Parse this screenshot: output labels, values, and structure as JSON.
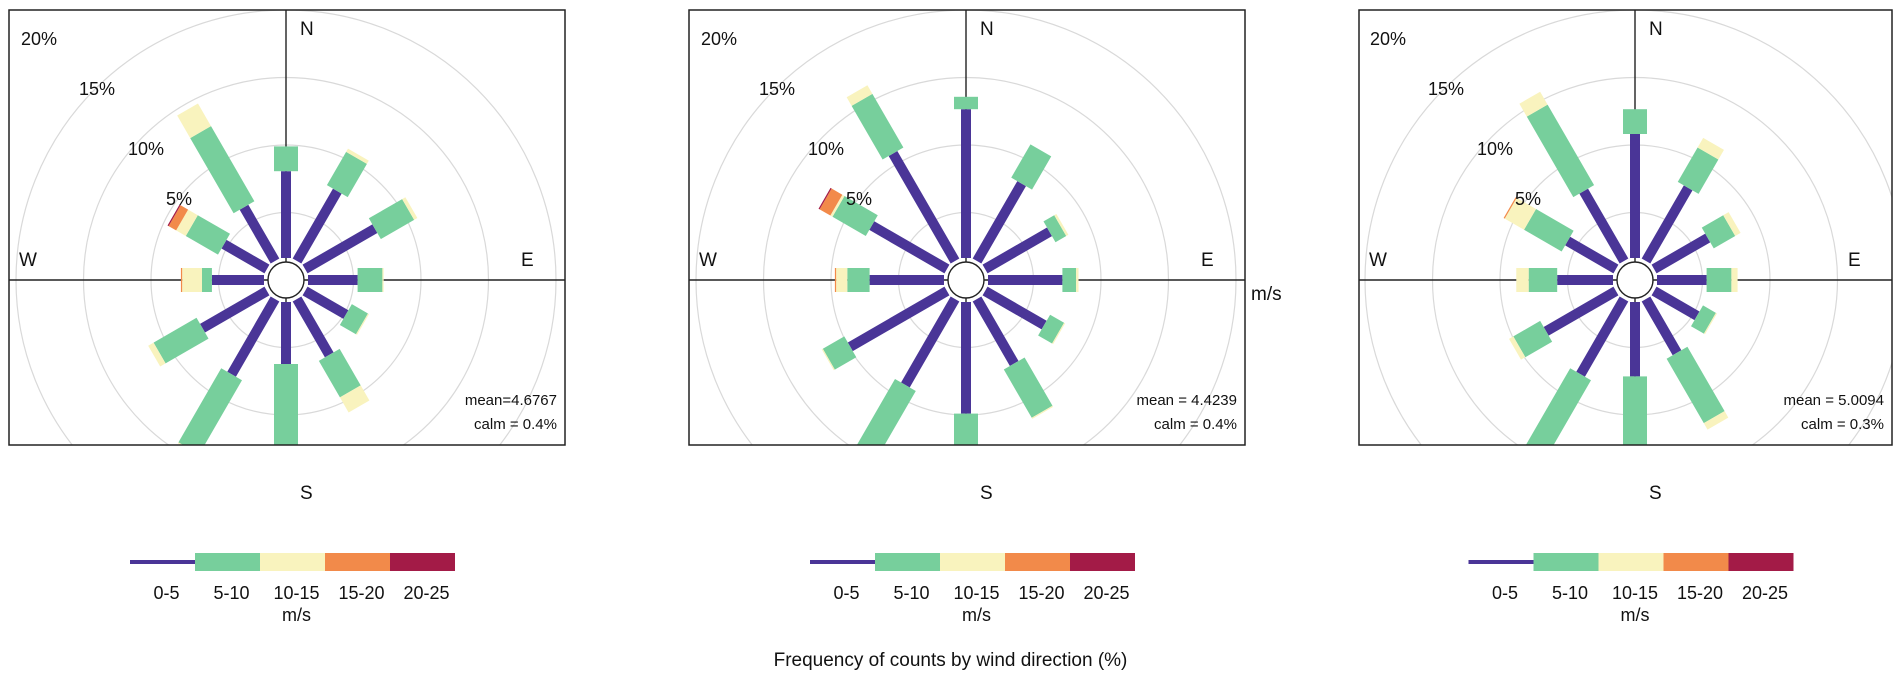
{
  "caption": "Frequency of counts by wind direction (%)",
  "speed_bins": [
    {
      "label": "0-5",
      "color": "#4a3597"
    },
    {
      "label": "5-10",
      "color": "#77cf9c"
    },
    {
      "label": "10-15",
      "color": "#f9f3be"
    },
    {
      "label": "15-20",
      "color": "#f28a4a"
    },
    {
      "label": "20-25",
      "color": "#a31b47"
    }
  ],
  "legend_unit": "m/s",
  "chart_data": [
    {
      "type": "windrose",
      "compass": [
        "N",
        "E",
        "S",
        "W"
      ],
      "ring_labels": [
        "5%",
        "10%",
        "15%",
        "20%"
      ],
      "rmax_percent": 20,
      "mean": "mean=4.6767",
      "calm": "calm = 0.4%",
      "directions": [
        0,
        30,
        60,
        90,
        120,
        150,
        180,
        210,
        240,
        270,
        300,
        330
      ],
      "cumulative_percent": [
        [
          7.0,
          9.0,
          9.0,
          9.0,
          9.0
        ],
        [
          6.5,
          9.6,
          9.9,
          9.9,
          9.9
        ],
        [
          6.5,
          9.6,
          9.9,
          9.9,
          9.9
        ],
        [
          4.0,
          6.0,
          6.1,
          6.1,
          6.1
        ],
        [
          3.8,
          5.3,
          5.4,
          5.4,
          5.4
        ],
        [
          5.2,
          8.6,
          10.0,
          10.0,
          10.0
        ],
        [
          5.0,
          14.2,
          14.4,
          14.4,
          14.4
        ],
        [
          7.0,
          13.9,
          14.0,
          14.0,
          14.0
        ],
        [
          6.0,
          10.0,
          10.5,
          10.5,
          10.5
        ],
        [
          4.2,
          5.0,
          6.6,
          6.7,
          6.7
        ],
        [
          4.0,
          7.0,
          7.9,
          8.6,
          8.7
        ],
        [
          5.0,
          12.0,
          14.1,
          14.1,
          14.1
        ]
      ]
    },
    {
      "type": "windrose",
      "compass": [
        "N",
        "E",
        "S",
        "W"
      ],
      "ring_labels": [
        "5%",
        "10%",
        "15%",
        "20%"
      ],
      "rmax_percent": 20,
      "mean": "mean = 4.4239",
      "calm": "calm = 0.4%",
      "units_label": "m/s",
      "directions": [
        0,
        30,
        60,
        90,
        120,
        150,
        180,
        210,
        240,
        270,
        300,
        330
      ],
      "cumulative_percent": [
        [
          12.0,
          13.0,
          13.0,
          13.0,
          13.0
        ],
        [
          7.2,
          10.3,
          10.3,
          10.3,
          10.3
        ],
        [
          6.0,
          7.0,
          7.2,
          7.2,
          7.2
        ],
        [
          6.0,
          7.1,
          7.3,
          7.3,
          7.3
        ],
        [
          5.5,
          6.8,
          6.9,
          6.9,
          6.9
        ],
        [
          6.0,
          10.5,
          10.6,
          10.6,
          10.6
        ],
        [
          9.0,
          15.0,
          15.1,
          15.1,
          15.1
        ],
        [
          8.0,
          14.5,
          14.6,
          14.6,
          14.6
        ],
        [
          9.0,
          11.0,
          11.1,
          11.1,
          11.1
        ],
        [
          6.0,
          7.8,
          8.7,
          8.8,
          8.8
        ],
        [
          7.0,
          10.1,
          10.3,
          11.3,
          11.4
        ],
        [
          10.0,
          15.0,
          15.8,
          15.8,
          15.8
        ]
      ]
    },
    {
      "type": "windrose",
      "compass": [
        "N",
        "E",
        "S",
        "W"
      ],
      "ring_labels": [
        "5%",
        "10%",
        "15%",
        "20%"
      ],
      "rmax_percent": 20,
      "mean": "mean = 5.0094",
      "calm": "calm = 0.3%",
      "directions": [
        0,
        30,
        60,
        90,
        120,
        150,
        180,
        210,
        240,
        270,
        300,
        330
      ],
      "cumulative_percent": [
        [
          10.0,
          12.0,
          12.0,
          12.0,
          12.0
        ],
        [
          6.8,
          10.0,
          10.9,
          10.9,
          10.9
        ],
        [
          5.0,
          7.0,
          7.5,
          7.5,
          7.5
        ],
        [
          4.0,
          6.0,
          6.5,
          6.5,
          6.5
        ],
        [
          4.0,
          5.2,
          5.3,
          5.3,
          5.3
        ],
        [
          5.0,
          11.0,
          11.6,
          11.6,
          11.6
        ],
        [
          6.0,
          18.0,
          18.5,
          18.5,
          18.5
        ],
        [
          7.0,
          15.0,
          15.8,
          15.8,
          15.8
        ],
        [
          6.5,
          9.0,
          9.4,
          9.4,
          9.4
        ],
        [
          4.5,
          6.8,
          7.8,
          7.8,
          7.8
        ],
        [
          4.5,
          8.0,
          9.8,
          9.9,
          9.9
        ],
        [
          6.5,
          14.0,
          15.2,
          15.2,
          15.2
        ]
      ]
    }
  ]
}
